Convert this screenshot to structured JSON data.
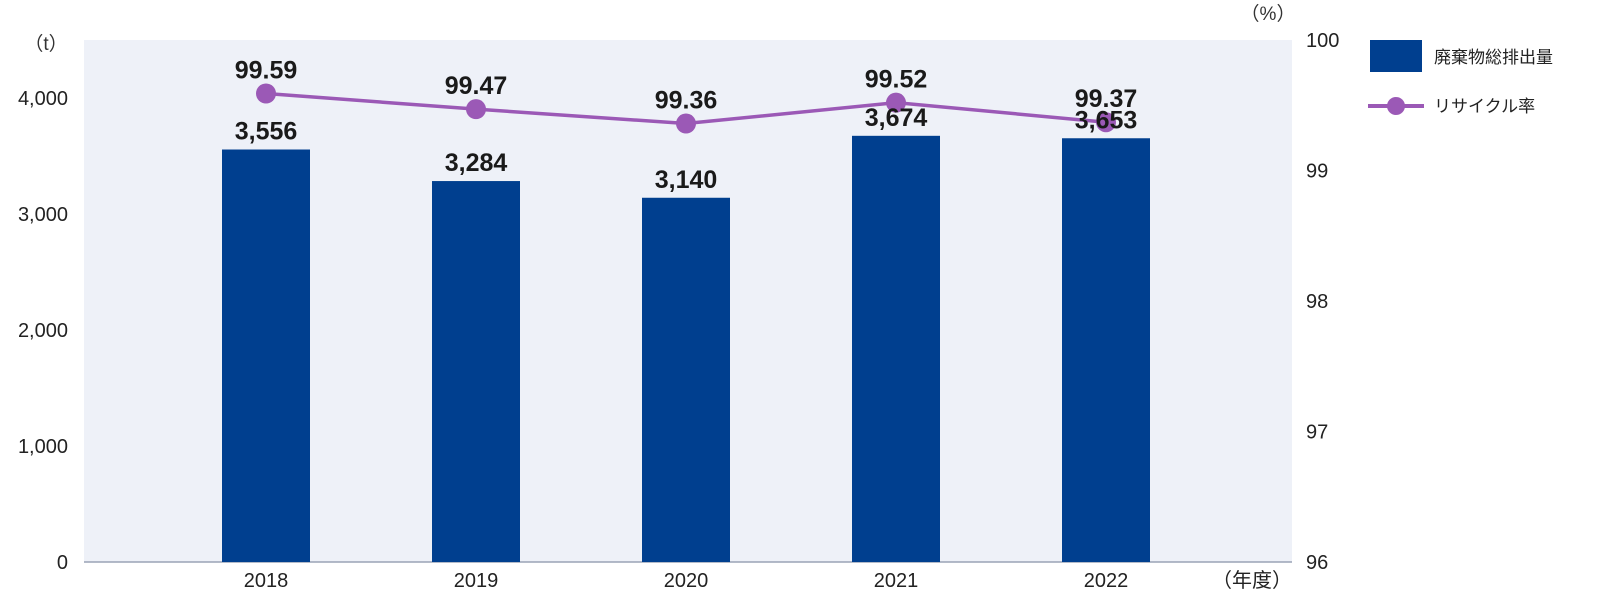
{
  "chart_data": {
    "type": "bar",
    "categories": [
      "2018",
      "2019",
      "2020",
      "2021",
      "2022"
    ],
    "series": [
      {
        "name": "廃棄物総排出量",
        "type": "bar",
        "axis": "left",
        "color": "#003f8f",
        "values": [
          3556,
          3284,
          3140,
          3674,
          3653
        ],
        "labels": [
          "3,556",
          "3,284",
          "3,140",
          "3,674",
          "3,653"
        ]
      },
      {
        "name": "リサイクル率",
        "type": "line",
        "axis": "right",
        "color": "#9b59b6",
        "values": [
          99.59,
          99.47,
          99.36,
          99.52,
          99.37
        ],
        "labels": [
          "99.59",
          "99.47",
          "99.36",
          "99.52",
          "99.37"
        ]
      }
    ],
    "y_left": {
      "unit": "（t）",
      "range": [
        0,
        4500
      ],
      "ticks": [
        0,
        1000,
        2000,
        3000,
        4000
      ],
      "tick_labels": [
        "0",
        "1,000",
        "2,000",
        "3,000",
        "4,000"
      ]
    },
    "y_right": {
      "unit": "（%）",
      "range": [
        96,
        100
      ],
      "ticks": [
        96,
        97,
        98,
        99,
        100
      ],
      "tick_labels": [
        "96",
        "97",
        "98",
        "99",
        "100"
      ]
    },
    "x_unit": "（年度）",
    "plot_background": "#eef1f8",
    "grid": false,
    "legend_position": "top-right"
  }
}
